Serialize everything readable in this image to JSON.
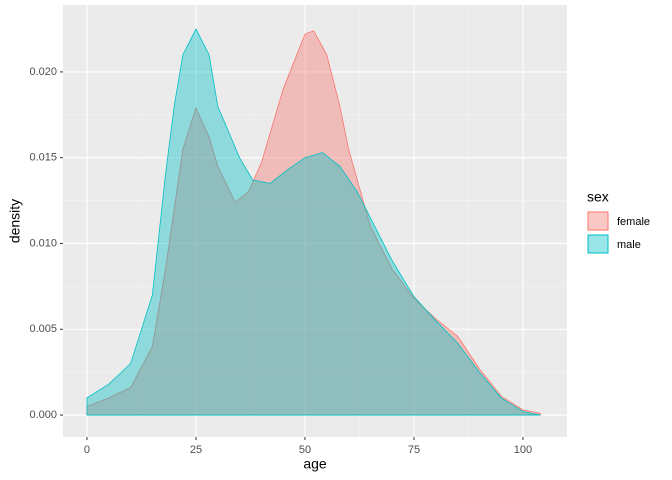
{
  "chart_data": {
    "type": "area",
    "x_label": "age",
    "y_label": "density",
    "legend_title": "sex",
    "legend_position": "right",
    "grid": true,
    "xlim": [
      -5.5,
      110.1
    ],
    "ylim": [
      -0.00128,
      0.0239
    ],
    "xticks": [
      0,
      25,
      50,
      75,
      100
    ],
    "yticks": [
      {
        "value": 0,
        "label": "0.000"
      },
      {
        "value": 0.005,
        "label": "0.005"
      },
      {
        "value": 0.01,
        "label": "0.010"
      },
      {
        "value": 0.015,
        "label": "0.015"
      },
      {
        "value": 0.02,
        "label": "0.020"
      }
    ],
    "series": [
      {
        "name": "female",
        "color": "#F8766D",
        "x": [
          0,
          5,
          10,
          15,
          18,
          20,
          22,
          25,
          28,
          30,
          34,
          37,
          40,
          45,
          50,
          52,
          55,
          58,
          60,
          65,
          70,
          75,
          80,
          85,
          90,
          95,
          100,
          104
        ],
        "values": [
          0.0005,
          0.001,
          0.0016,
          0.004,
          0.0085,
          0.012,
          0.0155,
          0.0179,
          0.0162,
          0.0145,
          0.0124,
          0.013,
          0.0147,
          0.019,
          0.0222,
          0.0224,
          0.021,
          0.018,
          0.0155,
          0.011,
          0.0085,
          0.0068,
          0.0056,
          0.0046,
          0.0027,
          0.0011,
          0.0003,
          0.0001
        ]
      },
      {
        "name": "male",
        "color": "#00BFC4",
        "x": [
          0,
          5,
          10,
          15,
          18,
          20,
          22,
          25,
          28,
          30,
          35,
          38,
          42,
          46,
          50,
          54,
          58,
          62,
          66,
          70,
          75,
          80,
          85,
          90,
          95,
          100,
          104
        ],
        "values": [
          0.001,
          0.0018,
          0.003,
          0.007,
          0.014,
          0.018,
          0.021,
          0.0225,
          0.021,
          0.018,
          0.015,
          0.0137,
          0.0135,
          0.0143,
          0.015,
          0.0153,
          0.0145,
          0.013,
          0.011,
          0.009,
          0.0069,
          0.0055,
          0.0042,
          0.0025,
          0.001,
          0.0002,
          0
        ]
      }
    ]
  }
}
